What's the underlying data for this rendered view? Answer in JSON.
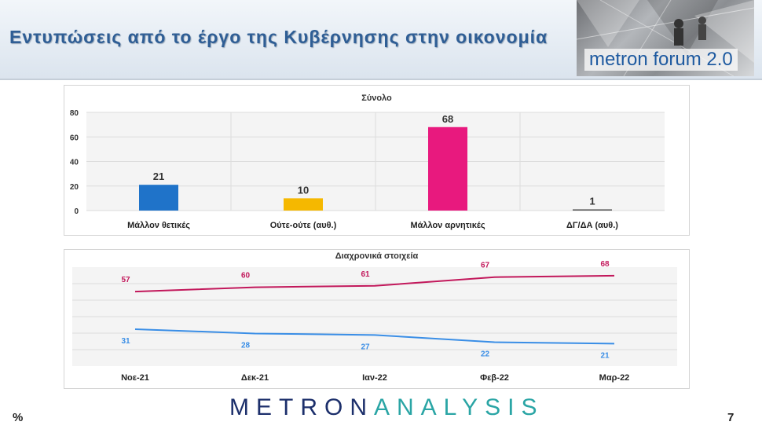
{
  "header": {
    "title": "Εντυπώσεις από το έργο της Κυβέρνησης στην οικονομία",
    "banner_text": "metron forum 2.0"
  },
  "footer": {
    "left": "%",
    "page": "7",
    "logo_part1": "METRON",
    "logo_part2": "ANALYSIS"
  },
  "chart_data": [
    {
      "type": "bar",
      "title": "Σύνολο",
      "categories": [
        "Μάλλον θετικές",
        "Ούτε-ούτε (αυθ.)",
        "Μάλλον αρνητικές",
        "ΔΓ/ΔΑ (αυθ.)"
      ],
      "values": [
        21,
        10,
        68,
        1
      ],
      "colors": [
        "#1f73c9",
        "#f5b800",
        "#e8197e",
        "#555555"
      ],
      "ylim": [
        0,
        80
      ],
      "yticks": [
        0,
        20,
        40,
        60,
        80
      ],
      "grid": true
    },
    {
      "type": "line",
      "title": "Διαχρονικά στοιχεία",
      "categories": [
        "Νοε-21",
        "Δεκ-21",
        "Ιαν-22",
        "Φεβ-22",
        "Μαρ-22"
      ],
      "series": [
        {
          "values": [
            57,
            60,
            61,
            67,
            68
          ],
          "color": "#c2185b"
        },
        {
          "values": [
            31,
            28,
            27,
            22,
            21
          ],
          "color": "#3a8ee6"
        }
      ],
      "grid": true
    }
  ]
}
